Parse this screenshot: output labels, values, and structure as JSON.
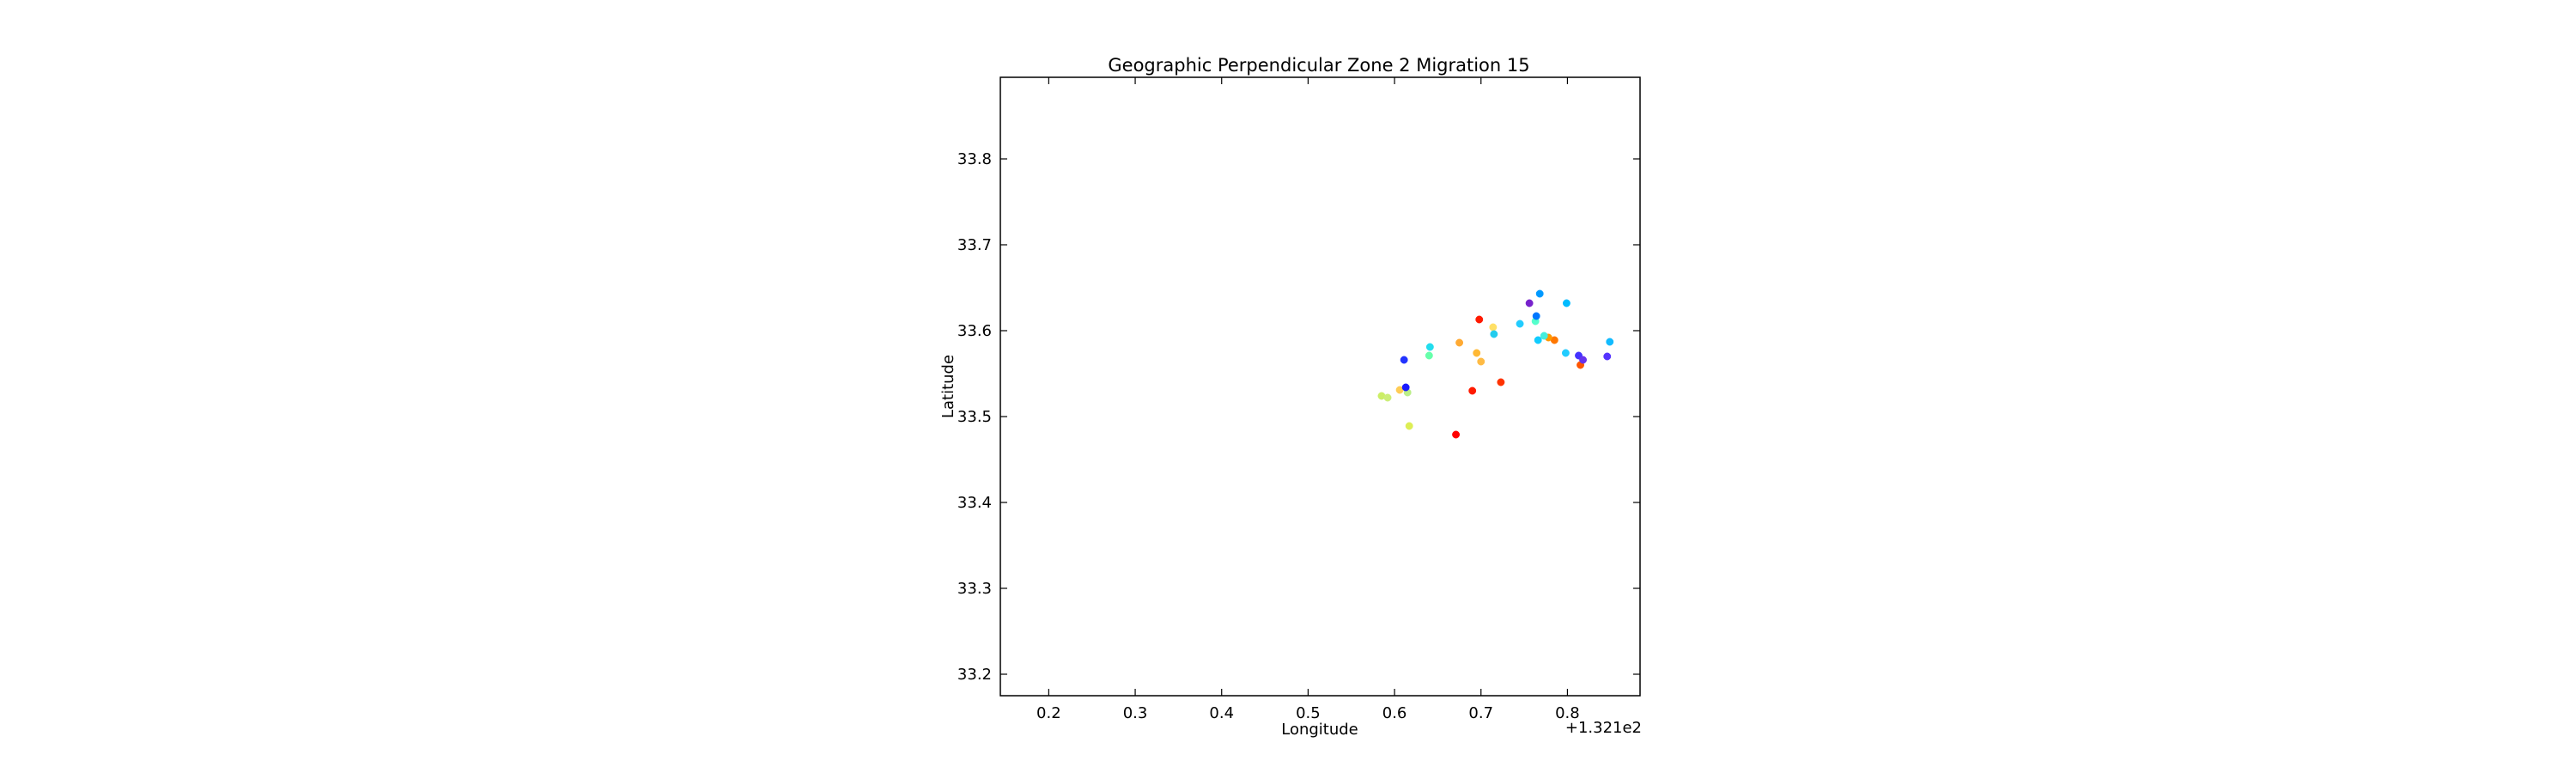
{
  "chart_data": {
    "type": "scatter",
    "title": "Geographic Perpendicular Zone 2 Migration 15",
    "xlabel": "Longitude",
    "ylabel": "Latitude",
    "x_offset_label": "+1.321e2",
    "xlim": [
      0.144,
      0.884
    ],
    "ylim": [
      33.175,
      33.895
    ],
    "xticks": [
      0.2,
      0.3,
      0.4,
      0.5,
      0.6,
      0.7,
      0.8
    ],
    "xtick_labels": [
      "0.2",
      "0.3",
      "0.4",
      "0.5",
      "0.6",
      "0.7",
      "0.8"
    ],
    "yticks": [
      33.2,
      33.3,
      33.4,
      33.5,
      33.6,
      33.7,
      33.8
    ],
    "ytick_labels": [
      "33.2",
      "33.3",
      "33.4",
      "33.5",
      "33.6",
      "33.7",
      "33.8"
    ],
    "grid": false,
    "legend": "none",
    "points": [
      {
        "x": 0.698,
        "y": 33.613,
        "color": "#ff1a00"
      },
      {
        "x": 0.69,
        "y": 33.53,
        "color": "#ff1a00"
      },
      {
        "x": 0.671,
        "y": 33.479,
        "color": "#ff0000"
      },
      {
        "x": 0.723,
        "y": 33.54,
        "color": "#ff3300"
      },
      {
        "x": 0.815,
        "y": 33.56,
        "color": "#ff5500"
      },
      {
        "x": 0.785,
        "y": 33.589,
        "color": "#ff7700"
      },
      {
        "x": 0.778,
        "y": 33.592,
        "color": "#ff9900"
      },
      {
        "x": 0.675,
        "y": 33.586,
        "color": "#ffaa33"
      },
      {
        "x": 0.695,
        "y": 33.574,
        "color": "#ffb833"
      },
      {
        "x": 0.7,
        "y": 33.564,
        "color": "#ffbb44"
      },
      {
        "x": 0.606,
        "y": 33.531,
        "color": "#ffcc55"
      },
      {
        "x": 0.714,
        "y": 33.604,
        "color": "#ffe066"
      },
      {
        "x": 0.617,
        "y": 33.489,
        "color": "#ddee55"
      },
      {
        "x": 0.585,
        "y": 33.524,
        "color": "#ccee66"
      },
      {
        "x": 0.592,
        "y": 33.522,
        "color": "#ccee77"
      },
      {
        "x": 0.615,
        "y": 33.528,
        "color": "#bbee88"
      },
      {
        "x": 0.64,
        "y": 33.571,
        "color": "#66ffaa"
      },
      {
        "x": 0.763,
        "y": 33.611,
        "color": "#55ffcc"
      },
      {
        "x": 0.773,
        "y": 33.594,
        "color": "#44eedd"
      },
      {
        "x": 0.641,
        "y": 33.581,
        "color": "#22ddee"
      },
      {
        "x": 0.715,
        "y": 33.596,
        "color": "#22ccee"
      },
      {
        "x": 0.745,
        "y": 33.608,
        "color": "#22ccff"
      },
      {
        "x": 0.766,
        "y": 33.589,
        "color": "#11ccff"
      },
      {
        "x": 0.798,
        "y": 33.574,
        "color": "#22ccff"
      },
      {
        "x": 0.799,
        "y": 33.632,
        "color": "#00bbff"
      },
      {
        "x": 0.849,
        "y": 33.587,
        "color": "#11bbff"
      },
      {
        "x": 0.768,
        "y": 33.643,
        "color": "#0099ff"
      },
      {
        "x": 0.764,
        "y": 33.617,
        "color": "#0077ff"
      },
      {
        "x": 0.611,
        "y": 33.566,
        "color": "#2233ff"
      },
      {
        "x": 0.613,
        "y": 33.534,
        "color": "#1a1aff"
      },
      {
        "x": 0.846,
        "y": 33.57,
        "color": "#5533ff"
      },
      {
        "x": 0.813,
        "y": 33.571,
        "color": "#4433ff"
      },
      {
        "x": 0.818,
        "y": 33.566,
        "color": "#6633ee"
      },
      {
        "x": 0.756,
        "y": 33.632,
        "color": "#7722cc"
      }
    ]
  }
}
